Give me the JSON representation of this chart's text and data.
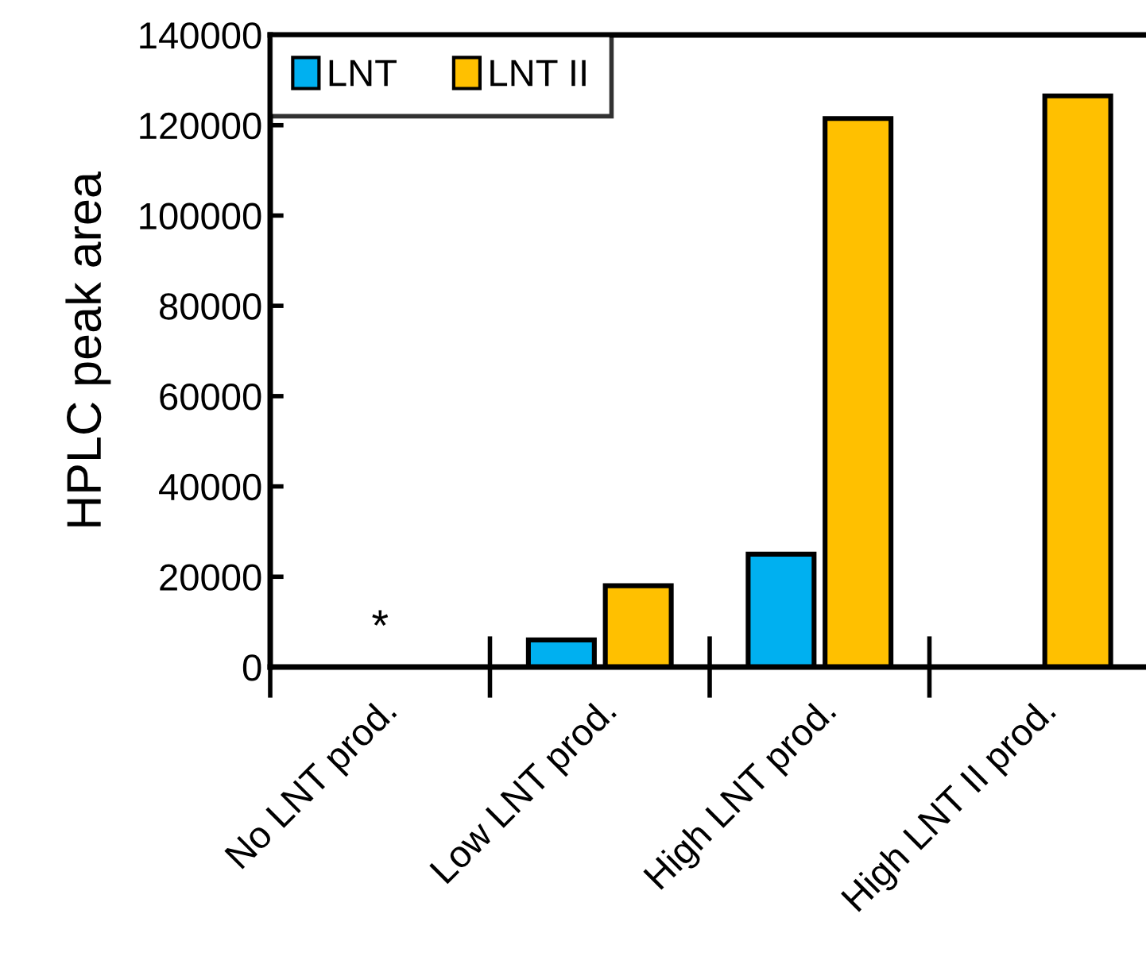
{
  "chart_data": {
    "type": "bar",
    "ylabel": "HPLC peak area",
    "categories": [
      "No LNT prod.",
      "Low LNT prod.",
      "High LNT prod.",
      "High LNT II prod."
    ],
    "series": [
      {
        "name": "LNT",
        "color": "#00b0f0",
        "values": [
          null,
          6000,
          25000,
          null
        ]
      },
      {
        "name": "LNT II",
        "color": "#ffc000",
        "values": [
          null,
          18000,
          121500,
          126500
        ]
      }
    ],
    "ylim": [
      0,
      140000
    ],
    "yticks": [
      0,
      20000,
      40000,
      60000,
      80000,
      100000,
      120000,
      140000
    ],
    "annotations": [
      "*"
    ],
    "grid": false,
    "legend": "top left"
  }
}
